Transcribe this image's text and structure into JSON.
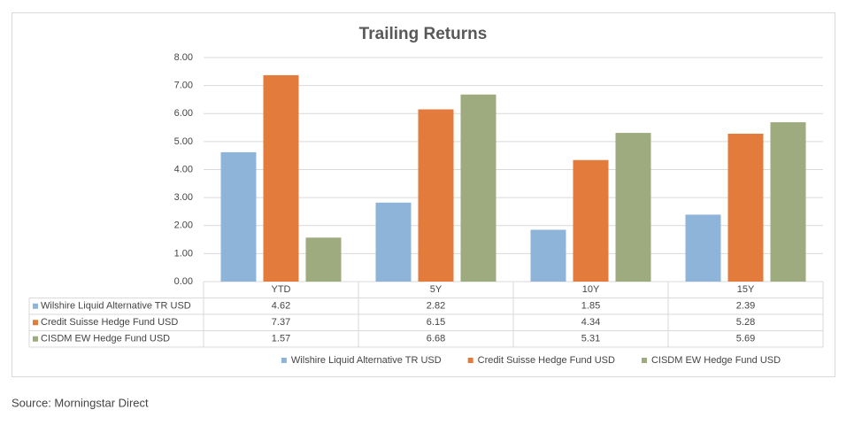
{
  "chart_data": {
    "type": "bar",
    "title": "Trailing Returns",
    "categories": [
      "YTD",
      "5Y",
      "10Y",
      "15Y"
    ],
    "series": [
      {
        "name": "Wilshire Liquid Alternative TR USD",
        "color": "#8fb4da",
        "values": [
          4.62,
          2.82,
          1.85,
          2.39
        ]
      },
      {
        "name": "Credit Suisse Hedge Fund USD",
        "color": "#e27b3b",
        "values": [
          7.37,
          6.15,
          4.34,
          5.28
        ]
      },
      {
        "name": "CISDM EW Hedge Fund USD",
        "color": "#9eab7e",
        "values": [
          1.57,
          6.68,
          5.31,
          5.69
        ]
      }
    ],
    "ylim": [
      0,
      8
    ],
    "yticks": [
      {
        "value": 0,
        "label": "0.00"
      },
      {
        "value": 1,
        "label": "1.00"
      },
      {
        "value": 2,
        "label": "2.00"
      },
      {
        "value": 3,
        "label": "3.00"
      },
      {
        "value": 4,
        "label": "4.00"
      },
      {
        "value": 5,
        "label": "5.00"
      },
      {
        "value": 6,
        "label": "6.00"
      },
      {
        "value": 7,
        "label": "7.00"
      },
      {
        "value": 8,
        "label": "8.00"
      }
    ],
    "grid": true,
    "legend": "bottom",
    "source": "Source: Morningstar Direct"
  }
}
